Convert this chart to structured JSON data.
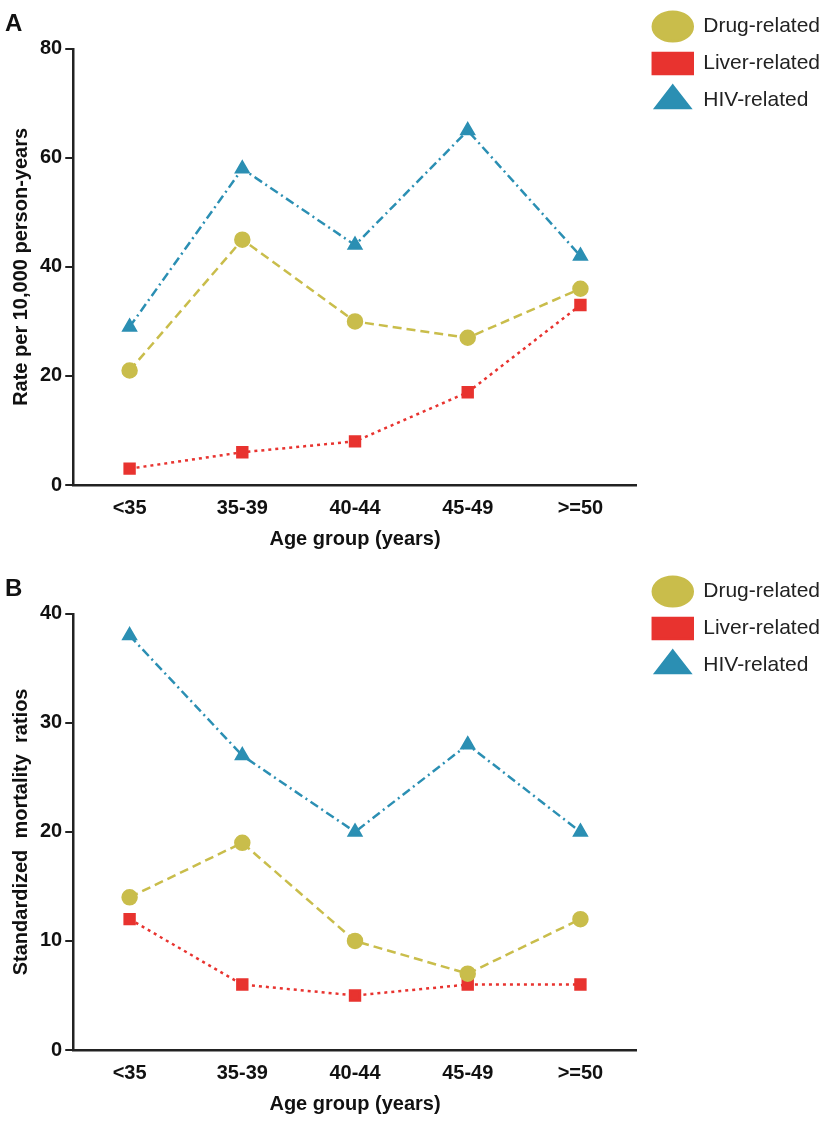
{
  "chart_data": [
    {
      "type": "line",
      "title": "A",
      "xlabel": "Age group (years)",
      "ylabel": "Rate per 10,000 person-years",
      "categories": [
        "<35",
        "35-39",
        "40-44",
        "45-49",
        ">=50"
      ],
      "series": [
        {
          "name": "Drug-related",
          "color": "#c9bd4b",
          "values": [
            21,
            45,
            30,
            27,
            36
          ],
          "marker": "circle",
          "line_style": "dashed"
        },
        {
          "name": "Liver-related",
          "color": "#e8332f",
          "values": [
            3,
            6,
            8,
            17,
            33
          ],
          "marker": "square",
          "line_style": "dotted"
        },
        {
          "name": "HIV-related",
          "color": "#2b8fb3",
          "values": [
            29,
            58,
            44,
            65,
            42
          ],
          "marker": "triangle",
          "line_style": "dashdot"
        }
      ],
      "ylim": [
        0,
        80
      ],
      "yticks": [
        0,
        20,
        40,
        60,
        80
      ],
      "grid": false,
      "legend": "top right"
    },
    {
      "type": "line",
      "title": "B",
      "xlabel": "Age group (years)",
      "ylabel": "Standardized  mortality  ratios",
      "categories": [
        "<35",
        "35-39",
        "40-44",
        "45-49",
        ">=50"
      ],
      "series": [
        {
          "name": "Drug-related",
          "color": "#c9bd4b",
          "values": [
            14,
            19,
            10,
            7,
            12
          ],
          "marker": "circle",
          "line_style": "dashed"
        },
        {
          "name": "Liver-related",
          "color": "#e8332f",
          "values": [
            12,
            6,
            5,
            6,
            6
          ],
          "marker": "square",
          "line_style": "dotted"
        },
        {
          "name": "HIV-related",
          "color": "#2b8fb3",
          "values": [
            38,
            27,
            20,
            28,
            20
          ],
          "marker": "triangle",
          "line_style": "dashdot"
        }
      ],
      "ylim": [
        0,
        40
      ],
      "yticks": [
        0,
        10,
        20,
        30,
        40
      ],
      "grid": false,
      "legend": "top right"
    }
  ]
}
